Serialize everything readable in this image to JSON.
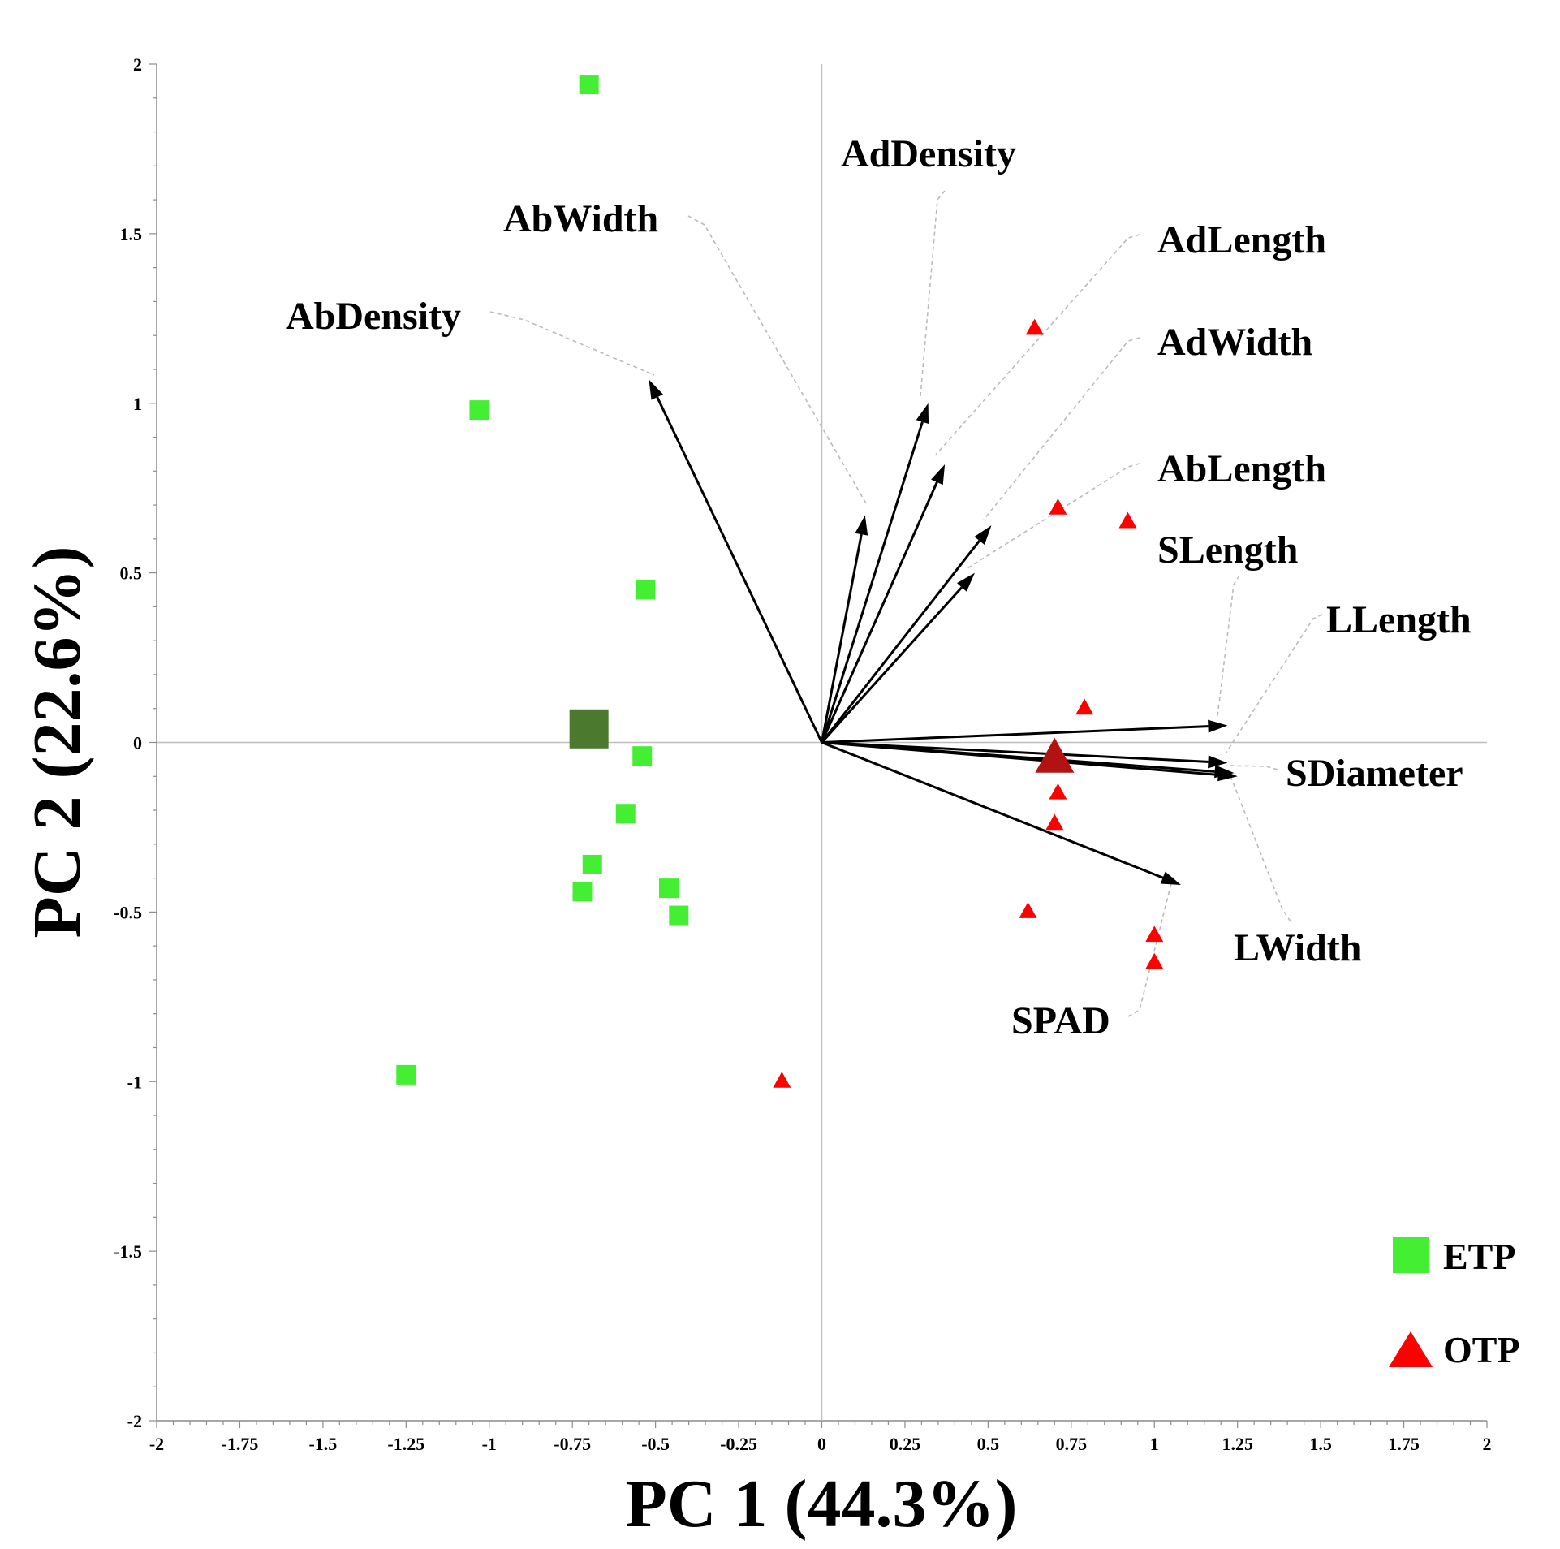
{
  "chart_data": {
    "type": "scatter",
    "subtype": "pca-biplot",
    "title": "",
    "xlabel": "PC 1 (44.3%)",
    "ylabel": "PC 2 (22.6%)",
    "xlim": [
      -2,
      2
    ],
    "ylim": [
      -2,
      2
    ],
    "x_ticks": [
      -2,
      -1.75,
      -1.5,
      -1.25,
      -1,
      -0.75,
      -0.5,
      -0.25,
      0,
      0.25,
      0.5,
      0.75,
      1,
      1.25,
      1.5,
      1.75,
      2
    ],
    "x_tick_labels": [
      "-2",
      "-1.75",
      "-1.5",
      "-1.25",
      "-1",
      "-0.75",
      "-0.5",
      "-0.25",
      "0",
      "0.25",
      "0.5",
      "0.75",
      "1",
      "1.25",
      "1.5",
      "1.75",
      "2"
    ],
    "y_ticks": [
      2,
      1.5,
      1,
      0.5,
      0,
      -0.5,
      -1,
      -1.5,
      -2
    ],
    "y_tick_labels": [
      "2",
      "1.5",
      "1",
      "0.5",
      "0",
      "-0.5",
      "-1",
      "-1.5",
      "-2"
    ],
    "grid": false,
    "legend_position": "bottom-right",
    "series": [
      {
        "name": "ETP",
        "marker": "square",
        "color": "#44ee33",
        "points": [
          {
            "x": -0.7,
            "y": 1.94
          },
          {
            "x": -1.03,
            "y": 0.98
          },
          {
            "x": -0.53,
            "y": 0.45
          },
          {
            "x": -0.54,
            "y": -0.04
          },
          {
            "x": -0.59,
            "y": -0.21
          },
          {
            "x": -0.69,
            "y": -0.36
          },
          {
            "x": -0.72,
            "y": -0.44
          },
          {
            "x": -0.46,
            "y": -0.43
          },
          {
            "x": -0.43,
            "y": -0.51
          },
          {
            "x": -1.25,
            "y": -0.98
          }
        ],
        "centroid": {
          "x": -0.7,
          "y": 0.04,
          "color": "#4b7a2e"
        }
      },
      {
        "name": "OTP",
        "marker": "triangle",
        "color": "#ff0000",
        "points": [
          {
            "x": 0.64,
            "y": 1.22
          },
          {
            "x": 0.71,
            "y": 0.69
          },
          {
            "x": 0.92,
            "y": 0.65
          },
          {
            "x": 0.79,
            "y": 0.1
          },
          {
            "x": 0.71,
            "y": -0.15
          },
          {
            "x": 0.7,
            "y": -0.24
          },
          {
            "x": 0.62,
            "y": -0.5
          },
          {
            "x": 1.0,
            "y": -0.57
          },
          {
            "x": 1.0,
            "y": -0.65
          },
          {
            "x": -0.12,
            "y": -1.0
          }
        ],
        "centroid": {
          "x": 0.7,
          "y": -0.05,
          "color": "#b21212"
        }
      }
    ],
    "loadings": [
      {
        "name": "AbDensity",
        "x": -0.52,
        "y": 1.07
      },
      {
        "name": "AbWidth",
        "x": 0.13,
        "y": 0.67
      },
      {
        "name": "AdDensity",
        "x": 0.32,
        "y": 1.0
      },
      {
        "name": "AdLength",
        "x": 0.37,
        "y": 0.82
      },
      {
        "name": "AdWidth",
        "x": 0.51,
        "y": 0.64
      },
      {
        "name": "AbLength",
        "x": 0.46,
        "y": 0.5
      },
      {
        "name": "SLength",
        "x": 1.22,
        "y": 0.05
      },
      {
        "name": "LLength",
        "x": 1.22,
        "y": -0.06
      },
      {
        "name": "SDiameter",
        "x": 1.24,
        "y": -0.09
      },
      {
        "name": "LWidth",
        "x": 1.25,
        "y": -0.1
      },
      {
        "name": "SPAD",
        "x": 1.08,
        "y": -0.42
      }
    ]
  }
}
